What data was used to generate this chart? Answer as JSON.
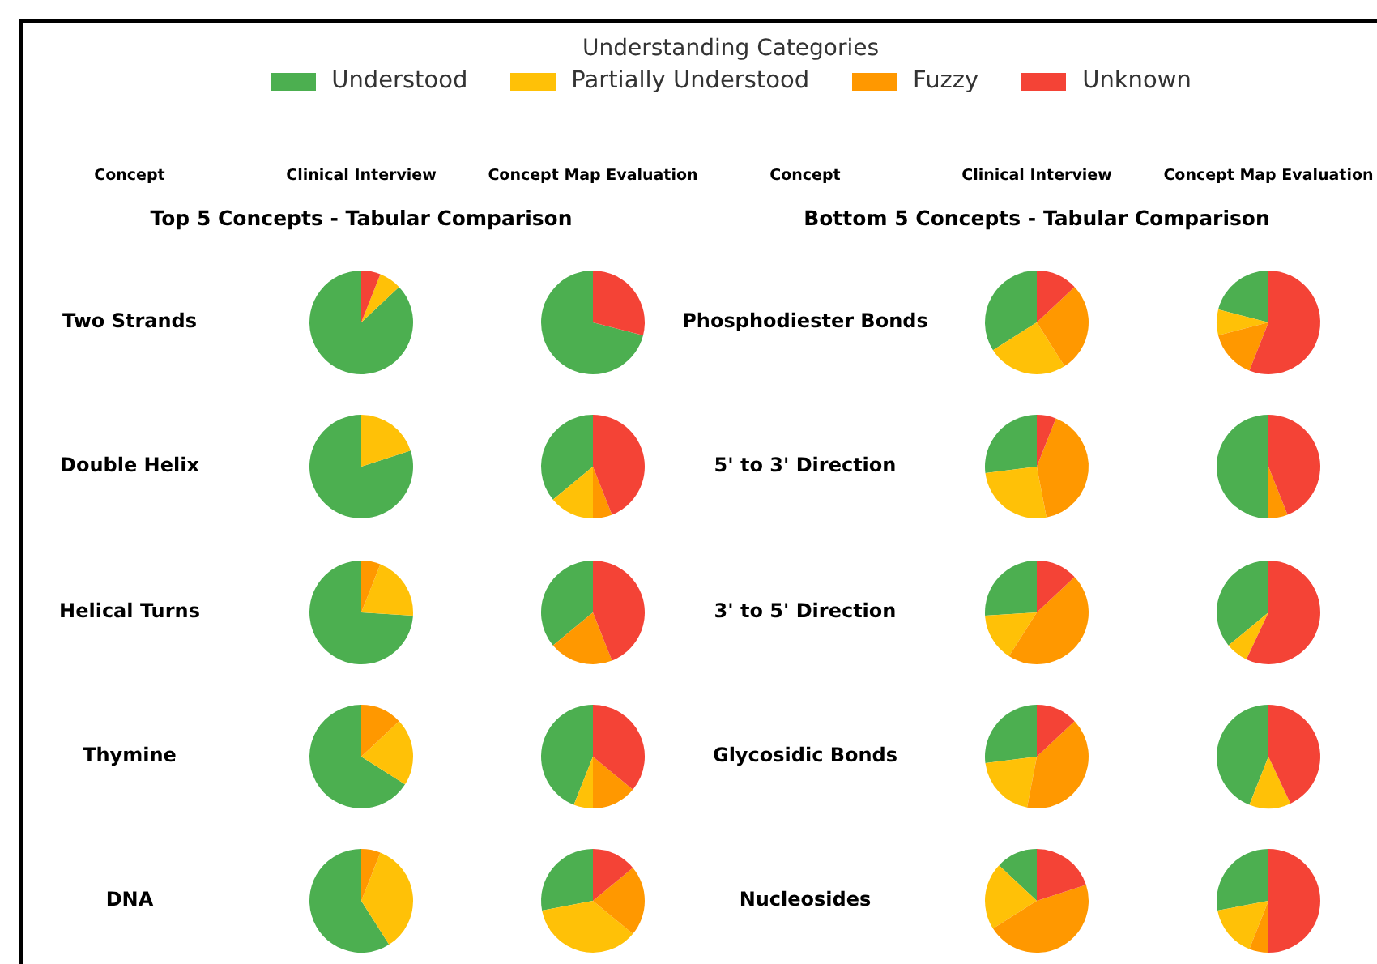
{
  "chart_data": [
    {
      "type": "other",
      "legend_title": "Understanding Categories",
      "legend": "top",
      "series": [
        {
          "name": "Understood",
          "color": "#4caf50"
        },
        {
          "name": "Partially Understood",
          "color": "#ffc107"
        },
        {
          "name": "Fuzzy",
          "color": "#ff9800"
        },
        {
          "name": "Unknown",
          "color": "#f44336"
        }
      ]
    },
    {
      "type": "other",
      "title": "Top 5 Concepts - Tabular Comparison",
      "categories": [
        "Concept",
        "Clinical Interview",
        "Concept Map Evaluation"
      ],
      "y_categories": [
        "Two Strands",
        "Double Helix",
        "Helical Turns",
        "Thymine",
        "DNA"
      ]
    },
    {
      "type": "pie",
      "categories": [
        null,
        null,
        null,
        null
      ],
      "colors": [
        "#4caf50",
        "#ffc107",
        "#ff9800",
        "#f44336"
      ],
      "values": [
        87,
        7,
        0,
        6
      ]
    },
    {
      "type": "pie",
      "categories": [
        null,
        null,
        null,
        null
      ],
      "colors": [
        "#4caf50",
        "#ffc107",
        "#ff9800",
        "#f44336"
      ],
      "values": [
        71,
        0,
        0,
        29
      ]
    },
    {
      "type": "pie",
      "categories": [
        null,
        null,
        null,
        null
      ],
      "colors": [
        "#4caf50",
        "#ffc107",
        "#ff9800",
        "#f44336"
      ],
      "values": [
        80,
        20,
        0,
        0
      ]
    },
    {
      "type": "pie",
      "categories": [
        null,
        null,
        null,
        null
      ],
      "colors": [
        "#4caf50",
        "#ffc107",
        "#ff9800",
        "#f44336"
      ],
      "values": [
        36,
        14,
        6,
        44
      ]
    },
    {
      "type": "pie",
      "categories": [
        null,
        null,
        null,
        null
      ],
      "colors": [
        "#4caf50",
        "#ffc107",
        "#ff9800",
        "#f44336"
      ],
      "values": [
        74,
        20,
        6,
        0
      ]
    },
    {
      "type": "pie",
      "categories": [
        null,
        null,
        null,
        null
      ],
      "colors": [
        "#4caf50",
        "#ffc107",
        "#ff9800",
        "#f44336"
      ],
      "values": [
        36,
        0,
        20,
        44
      ]
    },
    {
      "type": "pie",
      "categories": [
        null,
        null,
        null,
        null
      ],
      "colors": [
        "#4caf50",
        "#ffc107",
        "#ff9800",
        "#f44336"
      ],
      "values": [
        66,
        21,
        13,
        0
      ]
    },
    {
      "type": "pie",
      "categories": [
        null,
        null,
        null,
        null
      ],
      "colors": [
        "#4caf50",
        "#ffc107",
        "#ff9800",
        "#f44336"
      ],
      "values": [
        44,
        6,
        14,
        36
      ]
    },
    {
      "type": "pie",
      "categories": [
        null,
        null,
        null,
        null
      ],
      "colors": [
        "#4caf50",
        "#ffc107",
        "#ff9800",
        "#f44336"
      ],
      "values": [
        59,
        35,
        6,
        0
      ]
    },
    {
      "type": "pie",
      "categories": [
        null,
        null,
        null,
        null
      ],
      "colors": [
        "#4caf50",
        "#ffc107",
        "#ff9800",
        "#f44336"
      ],
      "values": [
        28,
        36,
        22,
        14
      ]
    },
    {
      "type": "other",
      "title": "Bottom 5 Concepts - Tabular Comparison",
      "categories": [
        "Concept",
        "Clinical Interview",
        "Concept Map Evaluation"
      ],
      "y_categories": [
        "Phosphodiester Bonds",
        "5' to 3' Direction",
        "3' to 5' Direction",
        "Glycosidic Bonds",
        "Nucleosides"
      ]
    },
    {
      "type": "pie",
      "categories": [
        null,
        null,
        null,
        null
      ],
      "colors": [
        "#4caf50",
        "#ffc107",
        "#ff9800",
        "#f44336"
      ],
      "values": [
        34,
        25,
        28,
        13
      ]
    },
    {
      "type": "pie",
      "categories": [
        null,
        null,
        null,
        null
      ],
      "colors": [
        "#4caf50",
        "#ffc107",
        "#ff9800",
        "#f44336"
      ],
      "values": [
        21,
        8,
        15,
        56
      ]
    },
    {
      "type": "pie",
      "categories": [
        null,
        null,
        null,
        null
      ],
      "colors": [
        "#4caf50",
        "#ffc107",
        "#ff9800",
        "#f44336"
      ],
      "values": [
        27,
        26,
        41,
        6
      ]
    },
    {
      "type": "pie",
      "categories": [
        null,
        null,
        null,
        null
      ],
      "colors": [
        "#4caf50",
        "#ffc107",
        "#ff9800",
        "#f44336"
      ],
      "values": [
        50,
        0,
        6,
        44
      ]
    },
    {
      "type": "pie",
      "categories": [
        null,
        null,
        null,
        null
      ],
      "colors": [
        "#4caf50",
        "#ffc107",
        "#ff9800",
        "#f44336"
      ],
      "values": [
        26,
        15,
        46,
        13
      ]
    },
    {
      "type": "pie",
      "categories": [
        null,
        null,
        null,
        null
      ],
      "colors": [
        "#4caf50",
        "#ffc107",
        "#ff9800",
        "#f44336"
      ],
      "values": [
        36,
        7,
        0,
        57
      ]
    },
    {
      "type": "pie",
      "categories": [
        null,
        null,
        null,
        null
      ],
      "colors": [
        "#4caf50",
        "#ffc107",
        "#ff9800",
        "#f44336"
      ],
      "values": [
        27,
        20,
        40,
        13
      ]
    },
    {
      "type": "pie",
      "categories": [
        null,
        null,
        null,
        null
      ],
      "colors": [
        "#4caf50",
        "#ffc107",
        "#ff9800",
        "#f44336"
      ],
      "values": [
        44,
        13,
        0,
        43
      ]
    },
    {
      "type": "pie",
      "categories": [
        null,
        null,
        null,
        null
      ],
      "colors": [
        "#4caf50",
        "#ffc107",
        "#ff9800",
        "#f44336"
      ],
      "values": [
        13,
        21,
        46,
        20
      ]
    },
    {
      "type": "pie",
      "categories": [
        null,
        null,
        null,
        null
      ],
      "colors": [
        "#4caf50",
        "#ffc107",
        "#ff9800",
        "#f44336"
      ],
      "values": [
        28,
        16,
        6,
        50
      ]
    }
  ]
}
